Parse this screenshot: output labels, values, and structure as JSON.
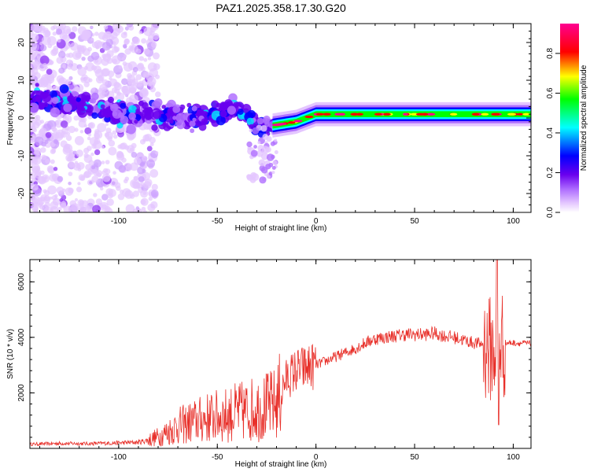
{
  "figure_title": "PAZ1.2025.358.17.30.G20",
  "chart_data": [
    {
      "type": "heatmap",
      "name": "spectrogram",
      "xlabel": "Height of straight line (km)",
      "ylabel": "Frequency (Hz)",
      "xlim": [
        -145,
        109
      ],
      "ylim": [
        -25,
        25
      ],
      "xticks": [
        -100,
        -50,
        0,
        50,
        100
      ],
      "xtick_labels": [
        "-100",
        "-50",
        "0",
        "50",
        "100"
      ],
      "yticks": [
        -20,
        -10,
        0,
        10,
        20
      ],
      "ytick_labels": [
        "-20",
        "-10",
        "0",
        "10",
        "20"
      ],
      "colorbar": {
        "label": "Normalized spectral amplitude",
        "range": [
          0,
          0.95
        ],
        "ticks": [
          0.0,
          0.2,
          0.4,
          0.6,
          0.8
        ],
        "tick_labels": [
          "0.0",
          "0.2",
          "0.4",
          "0.6",
          "0.8"
        ],
        "colors": [
          "#ffffff",
          "#e4c6ff",
          "#b070ff",
          "#6a00ee",
          "#0000ff",
          "#00ffff",
          "#00ff00",
          "#ffff00",
          "#ff0000",
          "#ff0090"
        ]
      },
      "signal_track": [
        {
          "x": -140,
          "freq": 5
        },
        {
          "x": -120,
          "freq": 4
        },
        {
          "x": -100,
          "freq": 1
        },
        {
          "x": -80,
          "freq": 1
        },
        {
          "x": -60,
          "freq": 0
        },
        {
          "x": -40,
          "freq": 3
        },
        {
          "x": -30,
          "freq": -2
        },
        {
          "x": -22,
          "freq": -2
        },
        {
          "x": -10,
          "freq": -1
        },
        {
          "x": 0,
          "freq": 1
        },
        {
          "x": 10,
          "freq": 1
        },
        {
          "x": 50,
          "freq": 1
        },
        {
          "x": 90,
          "freq": 1
        },
        {
          "x": 109,
          "freq": 1
        }
      ]
    },
    {
      "type": "line",
      "name": "snr",
      "xlabel": "Height of straight line (km)",
      "ylabel": "SNR (10 * v/v)",
      "xlim": [
        -145,
        109
      ],
      "ylim": [
        0,
        6800
      ],
      "xticks": [
        -100,
        -50,
        0,
        50,
        100
      ],
      "xtick_labels": [
        "-100",
        "-50",
        "0",
        "50",
        "100"
      ],
      "yticks": [
        2000,
        4000,
        6000
      ],
      "ytick_labels": [
        "2000",
        "4000",
        "6000"
      ],
      "color": "#e8302a",
      "series": [
        {
          "name": "SNR",
          "x": [
            -145,
            -130,
            -115,
            -100,
            -90,
            -85,
            -80,
            -75,
            -70,
            -65,
            -60,
            -55,
            -50,
            -45,
            -40,
            -35,
            -30,
            -25,
            -20,
            -17,
            -15,
            -12,
            -10,
            -5,
            0,
            5,
            10,
            15,
            20,
            25,
            30,
            35,
            40,
            45,
            50,
            55,
            60,
            65,
            70,
            75,
            80,
            85,
            88,
            90,
            92,
            95,
            100,
            109
          ],
          "y": [
            150,
            180,
            170,
            200,
            220,
            300,
            420,
            600,
            800,
            900,
            1000,
            1100,
            1150,
            1200,
            1300,
            1350,
            1450,
            1500,
            1600,
            2200,
            2500,
            2700,
            2800,
            2900,
            3000,
            3150,
            3300,
            3450,
            3600,
            3800,
            3950,
            4000,
            4050,
            4100,
            4100,
            4100,
            4150,
            4050,
            4000,
            3900,
            3800,
            3750,
            3600,
            3500,
            3900,
            3800,
            3800,
            3780
          ]
        }
      ]
    }
  ]
}
